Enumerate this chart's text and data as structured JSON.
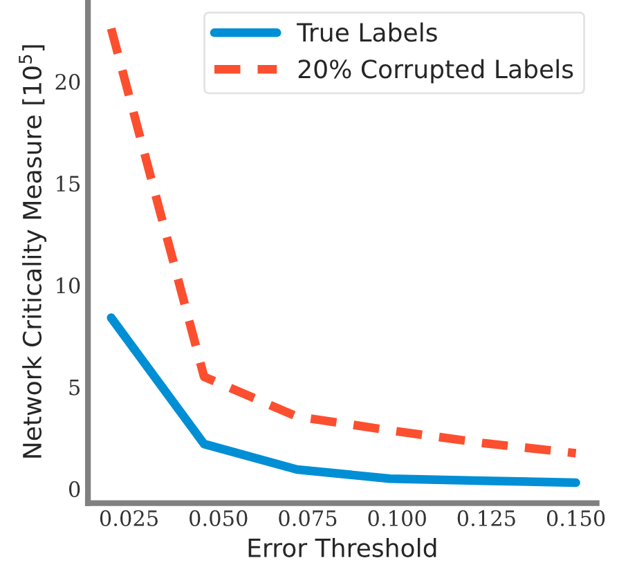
{
  "chart_data": {
    "type": "line",
    "xlabel": "Error Threshold",
    "ylabel": "Network Criticality Measure [10$^{5}$]",
    "x": [
      0.02,
      0.046,
      0.072,
      0.098,
      0.124,
      0.15
    ],
    "series": [
      {
        "name": "True Labels",
        "color": "#008fd5",
        "values": [
          8.4,
          2.2,
          0.95,
          0.5,
          0.4,
          0.3
        ],
        "line_style": "solid"
      },
      {
        "name": "20% Corrupted Labels",
        "color": "#fc4f30",
        "values": [
          22.6,
          5.5,
          3.55,
          2.87,
          2.25,
          1.75
        ],
        "line_style": "dashed"
      }
    ],
    "xlim": [
      0.0135,
      0.1558
    ],
    "ylim": [
      -0.7,
      24.0
    ],
    "xticks": [
      {
        "value": 0.025,
        "label": "0.025"
      },
      {
        "value": 0.05,
        "label": "0.050"
      },
      {
        "value": 0.075,
        "label": "0.075"
      },
      {
        "value": 0.1,
        "label": "0.100"
      },
      {
        "value": 0.125,
        "label": "0.125"
      },
      {
        "value": 0.15,
        "label": "0.150"
      }
    ],
    "yticks": [
      0,
      5,
      10,
      15,
      20
    ],
    "grid": false,
    "legend": "top right"
  }
}
